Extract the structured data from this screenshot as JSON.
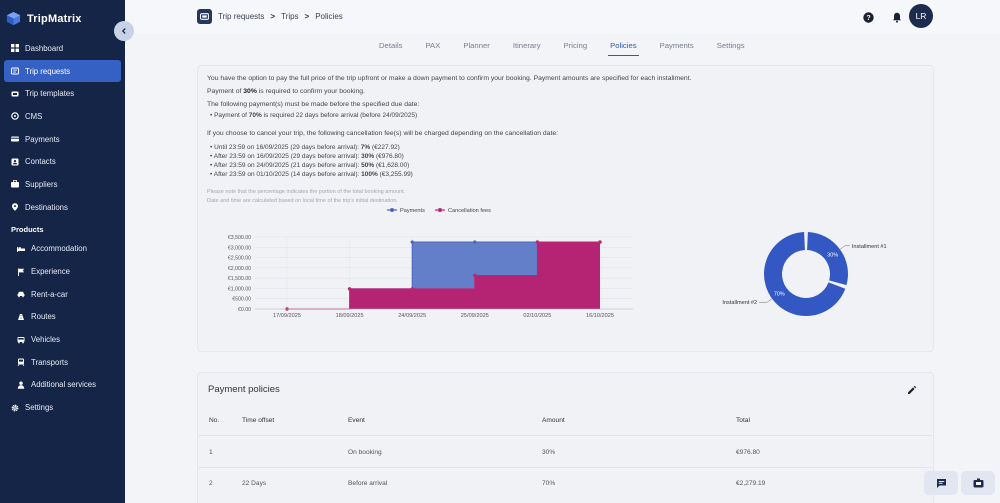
{
  "app": {
    "name": "TripMatrix"
  },
  "sidebar": {
    "items": [
      {
        "label": "Dashboard",
        "icon": "dashboard-icon"
      },
      {
        "label": "Trip requests",
        "icon": "trip-request-icon",
        "active": true
      },
      {
        "label": "Trip templates",
        "icon": "template-icon"
      },
      {
        "label": "CMS",
        "icon": "cms-icon"
      },
      {
        "label": "Payments",
        "icon": "payments-icon"
      },
      {
        "label": "Contacts",
        "icon": "contacts-icon"
      },
      {
        "label": "Suppliers",
        "icon": "suppliers-icon"
      },
      {
        "label": "Destinations",
        "icon": "destination-pin-icon"
      }
    ],
    "products_heading": "Products",
    "product_items": [
      {
        "label": "Accommodation",
        "icon": "bed-icon"
      },
      {
        "label": "Experience",
        "icon": "flag-icon"
      },
      {
        "label": "Rent-a-car",
        "icon": "car-icon"
      },
      {
        "label": "Routes",
        "icon": "route-icon"
      },
      {
        "label": "Vehicles",
        "icon": "vehicle-icon"
      },
      {
        "label": "Transports",
        "icon": "transport-icon"
      },
      {
        "label": "Additional services",
        "icon": "services-icon"
      }
    ],
    "settings_label": "Settings"
  },
  "breadcrumb": {
    "items": [
      "Trip requests",
      "Trips",
      "Policies"
    ],
    "sep": ">"
  },
  "header": {
    "avatar_initials": "LR"
  },
  "tabs": [
    "Details",
    "PAX",
    "Planner",
    "Itinerary",
    "Pricing",
    "Policies",
    "Payments",
    "Settings"
  ],
  "active_tab": "Policies",
  "policy": {
    "intro": "You have the option to pay the full price of the trip upfront or make a down payment to confirm your booking. Payment amounts are specified for each installment.",
    "downpayment_pre": "Payment of ",
    "downpayment_pct": "30%",
    "downpayment_post": " is required to confirm your booking.",
    "following": "The following payment(s) must be made before the specified due date:",
    "installment_pre": "Payment of ",
    "installment_pct": "70%",
    "installment_post": " is required 22 days before arrival (before 24/09/2025)",
    "cancel_intro": "If you choose to cancel your trip, the following cancellation fee(s) will be charged depending on the cancellation date:",
    "cancel_items": [
      {
        "pre": "Until 23:59 on 16/09/2025 (29 days before arrival): ",
        "pct": "7%",
        "post": " (€227.92)"
      },
      {
        "pre": "After 23:59 on 16/09/2025 (29 days before arrival): ",
        "pct": "30%",
        "post": " (€976.80)"
      },
      {
        "pre": "After 23:59 on 24/09/2025 (21 days before arrival): ",
        "pct": "50%",
        "post": " (€1,628.00)"
      },
      {
        "pre": "After 23:59 on 01/10/2025 (14 days before arrival): ",
        "pct": "100%",
        "post": " (€3,255.99)"
      }
    ],
    "note1": "Please note that the percentage indicates the portion of the total booking amount.",
    "note2": "Date and time are calculated based on local time of the trip's initial destination."
  },
  "chart_data": [
    {
      "type": "area",
      "legend": [
        "Payments",
        "Cancellation fees"
      ],
      "legend_position": "top-center",
      "colors": {
        "payments": "#5b78c6",
        "payments_line": "#4a67c0",
        "cancellation": "#b8206e",
        "cancellation_line": "#c0246f"
      },
      "x": [
        "17/09/2025",
        "18/09/2025",
        "24/09/2025",
        "25/09/2025",
        "02/10/2025",
        "16/10/2025"
      ],
      "ytick_labels": [
        "€0.00",
        "€500.00",
        "€1,000.00",
        "€1,500.00",
        "€2,000.00",
        "€2,500.00",
        "€3,000.00",
        "€3,500.00"
      ],
      "ylim": [
        0,
        3500
      ],
      "series": [
        {
          "name": "Payments",
          "values": [
            null,
            976.8,
            3256,
            3256,
            3256,
            3256
          ]
        },
        {
          "name": "Cancellation fees",
          "values": [
            0,
            976.8,
            976.8,
            1628,
            3256,
            3256
          ]
        }
      ],
      "grid": true
    },
    {
      "type": "pie",
      "donut": true,
      "labels": [
        "Installment #1",
        "Installment #2"
      ],
      "values": [
        30,
        70
      ],
      "value_labels": [
        "30%",
        "70%"
      ],
      "color": "#3358c4"
    }
  ],
  "payment_policies": {
    "title": "Payment policies",
    "columns": [
      "No.",
      "Time offset",
      "Event",
      "Amount",
      "Total"
    ],
    "rows": [
      [
        "1",
        "",
        "On booking",
        "30%",
        "€976.80"
      ],
      [
        "2",
        "22 Days",
        "Before arrival",
        "70%",
        "€2,279.19"
      ]
    ]
  }
}
